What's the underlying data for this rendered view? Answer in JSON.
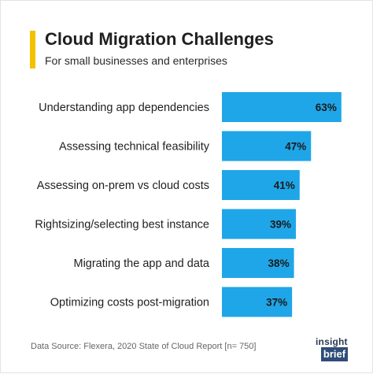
{
  "header": {
    "title": "Cloud Migration Challenges",
    "subtitle": "For small businesses and enterprises"
  },
  "chart_data": {
    "type": "bar",
    "orientation": "horizontal",
    "title": "Cloud Migration Challenges",
    "subtitle": "For small businesses and enterprises",
    "categories": [
      "Understanding app dependencies",
      "Assessing technical feasibility",
      "Assessing on-prem vs cloud costs",
      "Rightsizing/selecting best instance",
      "Migrating the app and data",
      "Optimizing costs post-migration"
    ],
    "values": [
      63,
      47,
      41,
      39,
      38,
      37
    ],
    "value_labels": [
      "63%",
      "47%",
      "41%",
      "39%",
      "38%",
      "37%"
    ],
    "unit": "%",
    "bar_color": "#1fa6e8",
    "grid": false,
    "legend": "none"
  },
  "footer": {
    "source": "Data Source: Flexera, 2020 State of Cloud Report [n= 750]"
  },
  "logo": {
    "top": "insight",
    "bottom": "brief",
    "color": "#2f4d78"
  }
}
